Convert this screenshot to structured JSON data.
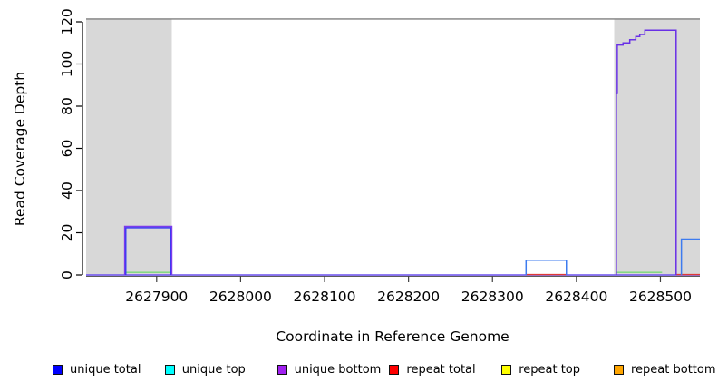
{
  "chart_data": {
    "type": "line",
    "title": "",
    "xlabel": "Coordinate in Reference Genome",
    "ylabel": "Read Coverage Depth",
    "xlim": [
      2627816,
      2628547
    ],
    "ylim": [
      0,
      121.3
    ],
    "xticks": [
      2627900,
      2628000,
      2628100,
      2628200,
      2628300,
      2628400,
      2628500
    ],
    "yticks": [
      0,
      20,
      40,
      60,
      80,
      100,
      120
    ],
    "grid": false,
    "cap_line_y": 121.3,
    "colors": {
      "shade": "#D8D8D8",
      "cap_line": "#7F7F7F",
      "axis": "#000000",
      "x_tick": "#3F3F3F",
      "text": "#000000"
    },
    "shaded_regions": [
      {
        "x0": 2627816,
        "x1": 2627918
      },
      {
        "x0": 2628445,
        "x1": 2628547
      }
    ],
    "series": [
      {
        "name": "axis-zero-line",
        "color": "#444444",
        "width": 1,
        "points": [
          [
            2627816,
            -0.6
          ],
          [
            2628547,
            -0.6
          ]
        ]
      },
      {
        "name": "unique-baseline",
        "color": "#6C50F0",
        "width": 1.5,
        "points": [
          [
            2627816,
            0
          ],
          [
            2628547,
            0
          ]
        ]
      },
      {
        "name": "green-zero-left",
        "color": "#77D877",
        "width": 1.4,
        "points": [
          [
            2627862,
            1.2
          ],
          [
            2627918,
            1.2
          ]
        ]
      },
      {
        "name": "green-zero-right",
        "color": "#77D877",
        "width": 1.4,
        "points": [
          [
            2628448,
            1.2
          ],
          [
            2628502,
            1.2
          ]
        ]
      },
      {
        "name": "repeat-zero-left",
        "color": "#E03A36",
        "width": 1.4,
        "points": [
          [
            2628340,
            0.2
          ],
          [
            2628388,
            0.2
          ]
        ]
      },
      {
        "name": "repeat-zero-right",
        "color": "#E03A36",
        "width": 1.4,
        "points": [
          [
            2628519,
            0.2
          ],
          [
            2628547,
            0.2
          ]
        ]
      },
      {
        "name": "unique-bottom-box1",
        "color": "#7C3AEC",
        "width": 1.5,
        "points": [
          [
            2627862,
            0
          ],
          [
            2627862,
            23
          ],
          [
            2627918,
            23
          ],
          [
            2627918,
            0
          ]
        ]
      },
      {
        "name": "unique-total-box1",
        "color": "#3333F2",
        "width": 1.3,
        "points": [
          [
            2627863.3,
            0
          ],
          [
            2627863.3,
            22.4
          ],
          [
            2627916.7,
            22.4
          ],
          [
            2627916.7,
            0
          ]
        ]
      },
      {
        "name": "unique-total-box2",
        "color": "#3D7BEF",
        "width": 1.5,
        "points": [
          [
            2628340,
            0
          ],
          [
            2628340,
            7
          ],
          [
            2628388,
            7
          ],
          [
            2628388,
            0
          ]
        ]
      },
      {
        "name": "unique-bottom-peak",
        "color": "#6930E6",
        "width": 1.5,
        "points": [
          [
            2628447.5,
            0
          ],
          [
            2628447.5,
            86
          ],
          [
            2628448.6,
            86
          ],
          [
            2628448.6,
            109
          ],
          [
            2628455.5,
            109
          ],
          [
            2628455.5,
            110
          ],
          [
            2628463.5,
            110
          ],
          [
            2628463.5,
            111.5
          ],
          [
            2628470.7,
            111.5
          ],
          [
            2628470.7,
            113
          ],
          [
            2628475.4,
            113
          ],
          [
            2628475.4,
            114
          ],
          [
            2628481.5,
            114
          ],
          [
            2628481.5,
            116
          ],
          [
            2628518.7,
            116
          ],
          [
            2628518.7,
            0
          ]
        ]
      },
      {
        "name": "unique-total-box4",
        "color": "#3D7BEF",
        "width": 1.5,
        "points": [
          [
            2628525,
            0
          ],
          [
            2628525,
            17
          ],
          [
            2628547,
            17
          ]
        ]
      }
    ],
    "legend": [
      {
        "label": "unique total",
        "color": "#0000FF"
      },
      {
        "label": "unique top",
        "color": "#00FFFF"
      },
      {
        "label": "unique bottom",
        "color": "#A020F0"
      },
      {
        "label": "repeat total",
        "color": "#FF0000"
      },
      {
        "label": "repeat top",
        "color": "#FFFF00"
      },
      {
        "label": "repeat bottom",
        "color": "#FFA500"
      }
    ],
    "legend_position": "bottom"
  }
}
